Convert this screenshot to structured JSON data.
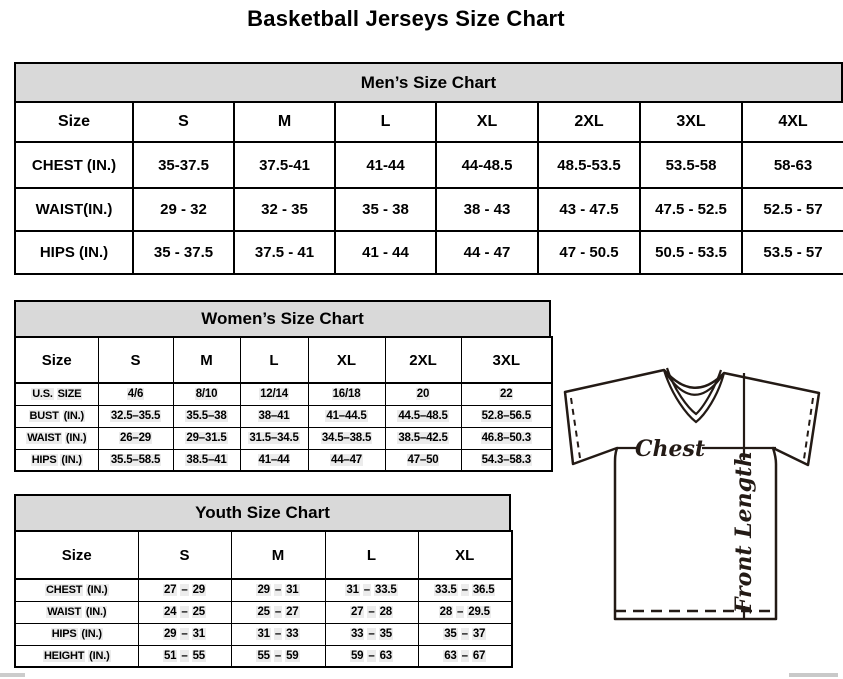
{
  "page_title": "Basketball Jerseys Size Chart",
  "mens_chart": {
    "title": "Men’s Size Chart",
    "header": [
      "Size",
      "S",
      "M",
      "L",
      "XL",
      "2XL",
      "3XL",
      "4XL"
    ],
    "rows": [
      {
        "label": "CHEST (IN.)",
        "values": [
          "35-37.5",
          "37.5-41",
          "41-44",
          "44-48.5",
          "48.5-53.5",
          "53.5-58",
          "58-63"
        ]
      },
      {
        "label": "WAIST(IN.)",
        "values": [
          "29 - 32",
          "32 - 35",
          "35 - 38",
          "38 - 43",
          "43 - 47.5",
          "47.5 - 52.5",
          "52.5 - 57"
        ]
      },
      {
        "label": "HIPS (IN.)",
        "values": [
          "35 - 37.5",
          "37.5 - 41",
          "41 - 44",
          "44 - 47",
          "47 - 50.5",
          "50.5 - 53.5",
          "53.5 - 57"
        ]
      }
    ]
  },
  "womens_chart": {
    "title": "Women’s Size Chart",
    "header": [
      "Size",
      "S",
      "M",
      "L",
      "XL",
      "2XL",
      "3XL"
    ],
    "rows": [
      {
        "label": "U.S. SIZE",
        "values": [
          "4/6",
          "8/10",
          "12/14",
          "16/18",
          "20",
          "22"
        ]
      },
      {
        "label": "BUST (IN.)",
        "values": [
          "32.5–35.5",
          "35.5–38",
          "38–41",
          "41–44.5",
          "44.5–48.5",
          "52.8–56.5"
        ]
      },
      {
        "label": "WAIST (IN.)",
        "values": [
          "26–29",
          "29–31.5",
          "31.5–34.5",
          "34.5–38.5",
          "38.5–42.5",
          "46.8–50.3"
        ]
      },
      {
        "label": "HIPS (IN.)",
        "values": [
          "35.5–58.5",
          "38.5–41",
          "41–44",
          "44–47",
          "47–50",
          "54.3–58.3"
        ]
      }
    ]
  },
  "youth_chart": {
    "title": "Youth Size Chart",
    "header": [
      "Size",
      "S",
      "M",
      "L",
      "XL"
    ],
    "rows": [
      {
        "label": "CHEST (IN.)",
        "values": [
          "27 – 29",
          "29 – 31",
          "31 – 33.5",
          "33.5 – 36.5"
        ]
      },
      {
        "label": "WAIST (IN.)",
        "values": [
          "24 – 25",
          "25 – 27",
          "27 – 28",
          "28 – 29.5"
        ]
      },
      {
        "label": "HIPS (IN.)",
        "values": [
          "29 – 31",
          "31 – 33",
          "33 – 35",
          "35 – 37"
        ]
      },
      {
        "label": "HEIGHT (IN.)",
        "values": [
          "51 – 55",
          "55 – 59",
          "59 – 63",
          "63 – 67"
        ]
      }
    ]
  },
  "diagram": {
    "chest_label": "Chest",
    "front_length_label": "Front Length"
  },
  "colors": {
    "section_header_bg": "#d9d9d9",
    "table_border": "#000000",
    "value_highlight": "#ececec",
    "diagram_stroke": "#231a15"
  }
}
